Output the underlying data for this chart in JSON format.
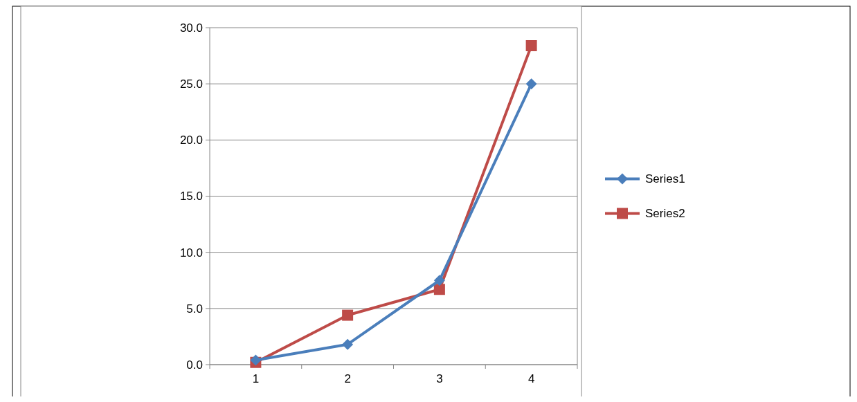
{
  "chart_data": {
    "type": "line",
    "categories": [
      "1",
      "2",
      "3",
      "4"
    ],
    "series": [
      {
        "name": "Series1",
        "color": "#4a7ebb",
        "values": [
          0.4,
          1.8,
          7.5,
          25.0
        ],
        "marker": "diamond"
      },
      {
        "name": "Series2",
        "color": "#be4b48",
        "values": [
          0.2,
          4.4,
          6.7,
          28.4
        ],
        "marker": "square"
      }
    ],
    "ylim": [
      0,
      30
    ],
    "yticks": [
      {
        "value": 0,
        "label": "0.0"
      },
      {
        "value": 5,
        "label": "5.0"
      },
      {
        "value": 10,
        "label": "10.0"
      },
      {
        "value": 15,
        "label": "15.0"
      },
      {
        "value": 20,
        "label": "20.0"
      },
      {
        "value": 25,
        "label": "25.0"
      },
      {
        "value": 30,
        "label": "30.0"
      }
    ],
    "grid": "y",
    "legend": "right",
    "line_style": "solid"
  }
}
